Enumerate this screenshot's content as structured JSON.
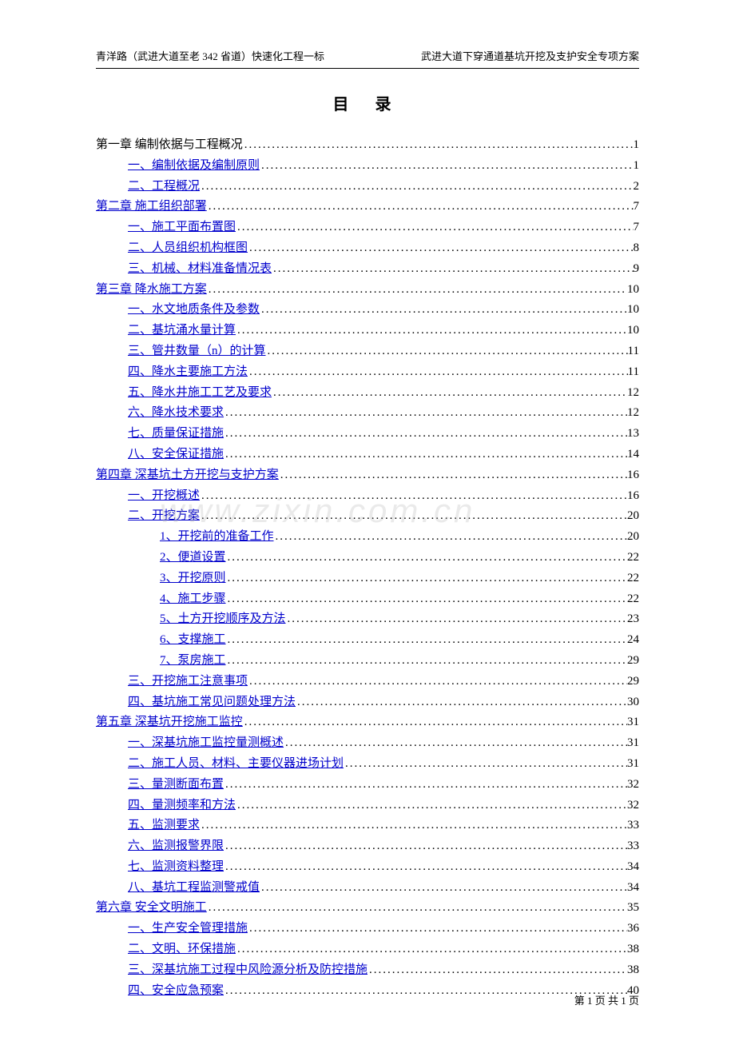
{
  "header_left": "青洋路（武进大道至老 342 省道）快速化工程一标",
  "header_right": "武进大道下穿通道基坑开挖及支护安全专项方案",
  "title": "目  录",
  "watermark": "www.zixin.com.cn",
  "footer": "第 1 页 共 1 页",
  "toc": [
    {
      "indent": 0,
      "label": "第一章   编制依据与工程概况",
      "page": "1",
      "link": false
    },
    {
      "indent": 1,
      "label": "一、编制依据及编制原则",
      "page": "1",
      "link": true
    },
    {
      "indent": 1,
      "label": "二、工程概况",
      "page": "2",
      "link": true
    },
    {
      "indent": 0,
      "label": "第二章   施工组织部署",
      "page": "7",
      "link": true
    },
    {
      "indent": 1,
      "label": "一、施工平面布置图",
      "page": "7",
      "link": true
    },
    {
      "indent": 1,
      "label": "二、人员组织机构框图",
      "page": "8",
      "link": true
    },
    {
      "indent": 1,
      "label": "三、机械、材料准备情况表",
      "page": "9",
      "link": true
    },
    {
      "indent": 0,
      "label": "第三章   降水施工方案",
      "page": "10",
      "link": true
    },
    {
      "indent": 1,
      "label": "一、水文地质条件及参数",
      "page": "10",
      "link": true
    },
    {
      "indent": 1,
      "label": "二、基坑涌水量计算",
      "page": "10",
      "link": true
    },
    {
      "indent": 1,
      "label": "三、管井数量（n）的计算",
      "page": "11",
      "link": true
    },
    {
      "indent": 1,
      "label": "四、降水主要施工方法",
      "page": "11",
      "link": true
    },
    {
      "indent": 1,
      "label": "五、降水井施工工艺及要求",
      "page": "12",
      "link": true
    },
    {
      "indent": 1,
      "label": "六、降水技术要求",
      "page": "12",
      "link": true
    },
    {
      "indent": 1,
      "label": "七、质量保证措施",
      "page": "13",
      "link": true
    },
    {
      "indent": 1,
      "label": "八、安全保证措施",
      "page": "14",
      "link": true
    },
    {
      "indent": 0,
      "label": "第四章   深基坑土方开挖与支护方案",
      "page": "16",
      "link": true
    },
    {
      "indent": 1,
      "label": "一、开挖概述",
      "page": "16",
      "link": true
    },
    {
      "indent": 1,
      "label": "二、开挖方案",
      "page": "20",
      "link": true
    },
    {
      "indent": 2,
      "label": "1、开挖前的准备工作",
      "page": "20",
      "link": true
    },
    {
      "indent": 2,
      "label": "2、便道设置",
      "page": "22",
      "link": true
    },
    {
      "indent": 2,
      "label": "3、开挖原则",
      "page": "22",
      "link": true
    },
    {
      "indent": 2,
      "label": "4、施工步骤",
      "page": "22",
      "link": true
    },
    {
      "indent": 2,
      "label": "5、土方开挖顺序及方法",
      "page": "23",
      "link": true
    },
    {
      "indent": 2,
      "label": "6、支撑施工",
      "page": "24",
      "link": true
    },
    {
      "indent": 2,
      "label": "7、泵房施工",
      "page": "29",
      "link": true
    },
    {
      "indent": 1,
      "label": "三、开挖施工注意事项",
      "page": "29",
      "link": true
    },
    {
      "indent": 1,
      "label": "四、基坑施工常见问题处理方法",
      "page": "30",
      "link": true
    },
    {
      "indent": 0,
      "label": "第五章   深基坑开挖施工监控",
      "page": "31",
      "link": true
    },
    {
      "indent": 1,
      "label": "一、深基坑施工监控量测概述",
      "page": "31",
      "link": true
    },
    {
      "indent": 1,
      "label": "二、施工人员、材料、主要仪器进场计划",
      "page": "31",
      "link": true
    },
    {
      "indent": 1,
      "label": "三、量测断面布置",
      "page": "32",
      "link": true
    },
    {
      "indent": 1,
      "label": "四、量测频率和方法",
      "page": "32",
      "link": true
    },
    {
      "indent": 1,
      "label": "五、监测要求",
      "page": "33",
      "link": true
    },
    {
      "indent": 1,
      "label": "六、监测报警界限",
      "page": "33",
      "link": true
    },
    {
      "indent": 1,
      "label": "七、监测资料整理",
      "page": "34",
      "link": true
    },
    {
      "indent": 1,
      "label": "八、基坑工程监测警戒值",
      "page": "34",
      "link": true
    },
    {
      "indent": 0,
      "label": "第六章   安全文明施工",
      "page": "35",
      "link": true
    },
    {
      "indent": 1,
      "label": "一、生产安全管理措施",
      "page": "36",
      "link": true
    },
    {
      "indent": 1,
      "label": "二、文明、环保措施",
      "page": "38",
      "link": true
    },
    {
      "indent": 1,
      "label": "三、深基坑施工过程中风险源分析及防控措施",
      "page": "38",
      "link": true
    },
    {
      "indent": 1,
      "label": "四、安全应急预案",
      "page": "40",
      "link": true
    }
  ]
}
